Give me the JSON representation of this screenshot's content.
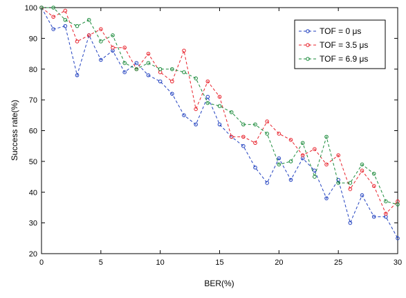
{
  "chart_data": {
    "type": "line",
    "xlabel": "BER(%)",
    "ylabel": "Success rate(%)",
    "xlim": [
      0,
      30
    ],
    "ylim": [
      20,
      100
    ],
    "xticks": [
      0,
      5,
      10,
      15,
      20,
      25,
      30
    ],
    "yticks": [
      20,
      30,
      40,
      50,
      60,
      70,
      80,
      90,
      100
    ],
    "grid": false,
    "legend_position": "top-right",
    "x": [
      0,
      1,
      2,
      3,
      4,
      5,
      6,
      7,
      8,
      9,
      10,
      11,
      12,
      13,
      14,
      15,
      16,
      17,
      18,
      19,
      20,
      21,
      22,
      23,
      24,
      25,
      26,
      27,
      28,
      29,
      30
    ],
    "series": [
      {
        "name": "TOF = 0 μs",
        "color": "#1f3fbf",
        "values": [
          100,
          93,
          94,
          78,
          91,
          83,
          86,
          79,
          82,
          78,
          76,
          72,
          65,
          62,
          71,
          62,
          58,
          55,
          48,
          43,
          51,
          44,
          51,
          47,
          38,
          44,
          30,
          39,
          32,
          32,
          25
        ]
      },
      {
        "name": "TOF = 3.5 μs",
        "color": "#e8202a",
        "values": [
          100,
          97,
          99,
          89,
          91,
          93,
          87,
          87,
          80,
          85,
          79,
          76,
          86,
          67,
          76,
          71,
          58,
          58,
          56,
          63,
          59,
          57,
          52,
          54,
          49,
          52,
          41,
          47,
          42,
          33,
          37
        ]
      },
      {
        "name": "TOF = 6.9 μs",
        "color": "#1a8a3a",
        "values": [
          100,
          100,
          96,
          94,
          96,
          89,
          91,
          82,
          80,
          82,
          80,
          80,
          79,
          77,
          69,
          68,
          66,
          62,
          62,
          59,
          49,
          50,
          56,
          45,
          58,
          43,
          43,
          49,
          46,
          37,
          36
        ]
      }
    ]
  }
}
